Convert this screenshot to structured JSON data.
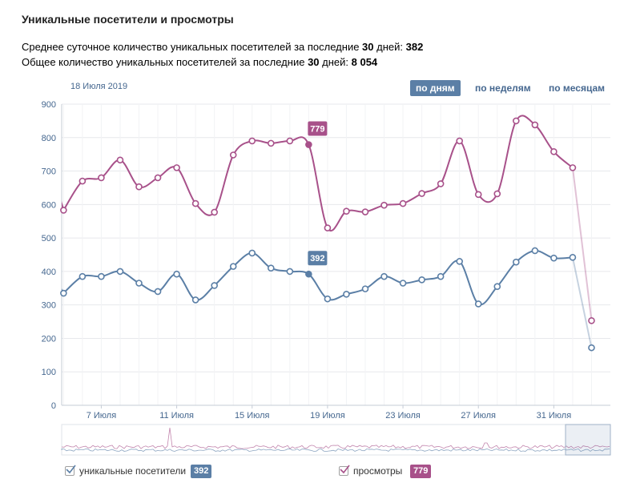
{
  "header": {
    "title": "Уникальные посетители и просмотры",
    "stat1_prefix": "Среднее суточное количество уникальных посетителей за последние ",
    "stat1_days": "30",
    "stat1_mid": " дней: ",
    "stat1_value": "382",
    "stat2_prefix": "Общее количество уникальных посетителей за последние ",
    "stat2_days": "30",
    "stat2_mid": " дней: ",
    "stat2_value": "8 054"
  },
  "hover_date": "18 Июля 2019",
  "period_tabs": [
    {
      "label": "по дням",
      "active": true
    },
    {
      "label": "по неделям",
      "active": false
    },
    {
      "label": "по месяцам",
      "active": false
    }
  ],
  "legend": [
    {
      "label": "уникальные посетители",
      "value": "392",
      "color": "#5b7fa6",
      "checked": true
    },
    {
      "label": "просмотры",
      "value": "779",
      "color": "#a8518a",
      "checked": true
    }
  ],
  "colors": {
    "visitors": "#5b7fa6",
    "views": "#a8518a",
    "grid": "#e7e8ec",
    "axis_text": "#45678f"
  },
  "chart_data": {
    "type": "line",
    "ylim": [
      0,
      900
    ],
    "yticks": [
      0,
      100,
      200,
      300,
      400,
      500,
      600,
      700,
      800,
      900
    ],
    "xlim": [
      4.9,
      34.0
    ],
    "x_tick_labels": [
      {
        "day": 7,
        "label": "7 Июля"
      },
      {
        "day": 11,
        "label": "11 Июля"
      },
      {
        "day": 15,
        "label": "15 Июля"
      },
      {
        "day": 19,
        "label": "19 Июля"
      },
      {
        "day": 23,
        "label": "23 Июля"
      },
      {
        "day": 27,
        "label": "27 Июля"
      },
      {
        "day": 31,
        "label": "31 Июля"
      }
    ],
    "x_days": [
      5,
      6,
      7,
      8,
      9,
      10,
      11,
      12,
      13,
      14,
      15,
      16,
      17,
      18,
      19,
      20,
      21,
      22,
      23,
      24,
      25,
      26,
      27,
      28,
      29,
      30,
      31,
      32,
      33,
      34
    ],
    "highlight_day": 18,
    "series": [
      {
        "name": "уникальные посетители",
        "values": [
          335,
          385,
          385,
          400,
          365,
          340,
          392,
          315,
          358,
          415,
          455,
          410,
          400,
          392,
          318,
          332,
          348,
          385,
          365,
          375,
          385,
          430,
          303,
          355,
          428,
          462,
          440,
          442,
          172,
          null
        ],
        "highlight_value": "392"
      },
      {
        "name": "просмотры",
        "values": [
          583,
          670,
          680,
          733,
          653,
          680,
          710,
          603,
          577,
          748,
          790,
          783,
          790,
          779,
          530,
          580,
          578,
          598,
          603,
          633,
          662,
          790,
          630,
          632,
          850,
          838,
          758,
          710,
          253,
          null
        ],
        "highlight_value": "779"
      }
    ],
    "grid": true,
    "legend_position": "bottom"
  }
}
